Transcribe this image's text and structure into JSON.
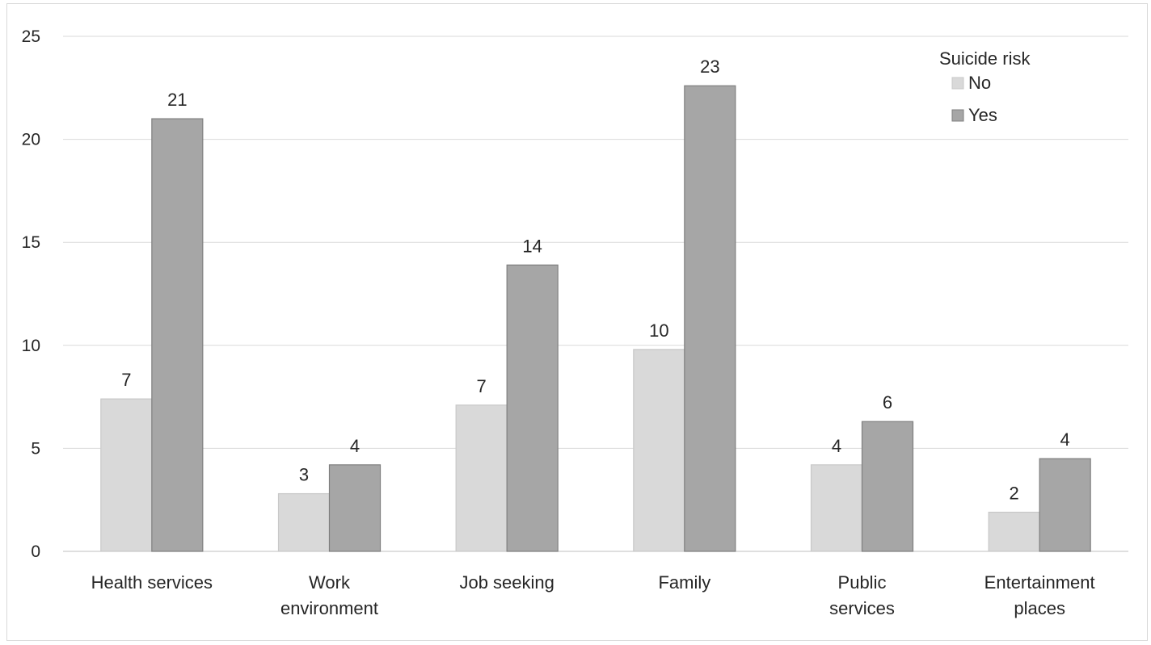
{
  "chart_data": {
    "type": "bar",
    "title": "",
    "xlabel": "",
    "ylabel": "",
    "ylim": [
      0,
      25
    ],
    "yticks": [
      0,
      5,
      10,
      15,
      20,
      25
    ],
    "grid": true,
    "legend_position": "top-right",
    "legend_title": "Suicide risk",
    "categories": [
      [
        "Health services"
      ],
      [
        "Work",
        "environment"
      ],
      [
        "Job seeking"
      ],
      [
        "Family"
      ],
      [
        "Public",
        "services"
      ],
      [
        "Entertainment",
        "places"
      ]
    ],
    "series": [
      {
        "name": "No",
        "color": "#d9d9d9",
        "values": [
          7.4,
          2.8,
          7.1,
          9.8,
          4.2,
          1.9
        ],
        "labels": [
          "7",
          "3",
          "7",
          "10",
          "4",
          "2"
        ]
      },
      {
        "name": "Yes",
        "color": "#a6a6a6",
        "values": [
          21.0,
          4.2,
          13.9,
          22.6,
          6.3,
          4.5
        ],
        "labels": [
          "21",
          "4",
          "14",
          "23",
          "6",
          "4"
        ]
      }
    ]
  }
}
